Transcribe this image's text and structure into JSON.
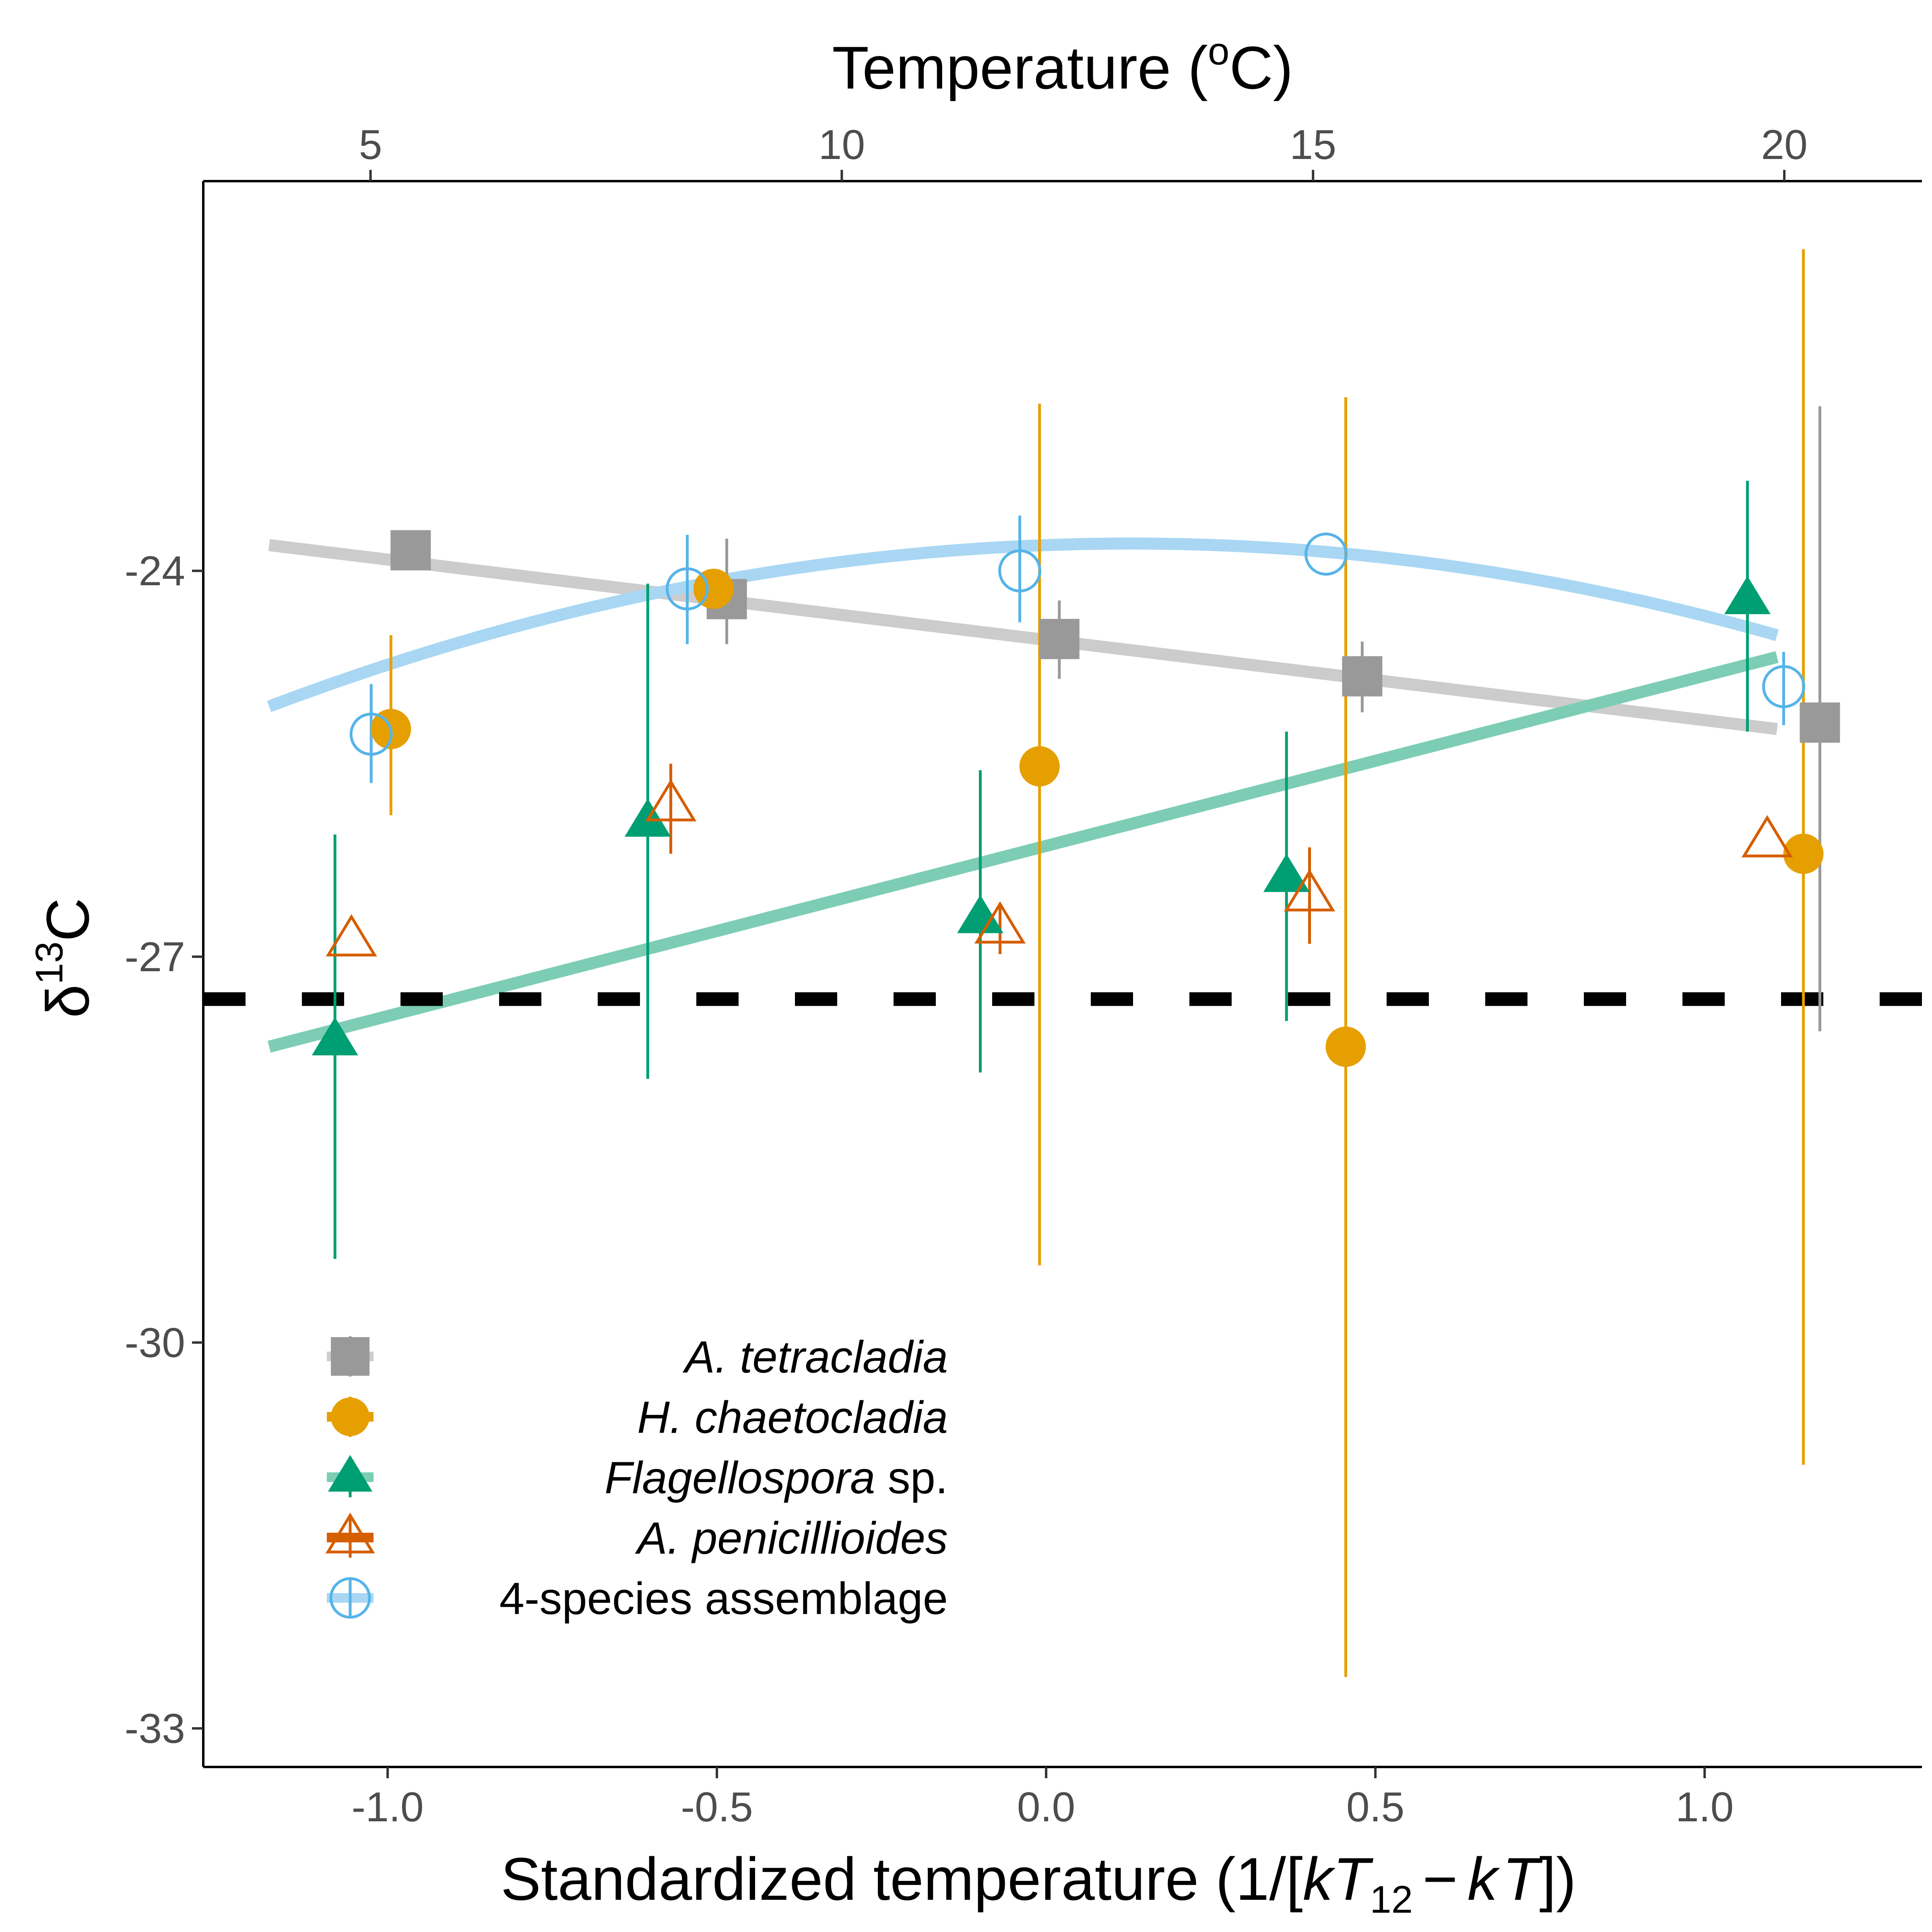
{
  "chart_data": {
    "type": "scatter",
    "xlabel": "Standardized temperature (1/[kT₁₂ − kT])",
    "xlabel_parts": {
      "prefix": "Standardized temperature (1/[",
      "k1": "k",
      "T1": "T",
      "sub": "12",
      "minus": "−",
      "k2": "k",
      "T2": "T",
      "suffix": "])"
    },
    "ylabel": "δ¹³C",
    "ylabel_parts": {
      "delta": "δ",
      "sup": "13",
      "base": "C"
    },
    "top_xlabel": "Temperature (°C)",
    "top_xlabel_parts": {
      "prefix": "Temperature (",
      "deg": "o",
      "suffix": "C)"
    },
    "xlim": [
      -1.28,
      1.33
    ],
    "ylim": [
      -33.3,
      -20.97
    ],
    "x_ticks": [
      {
        "value": -1.0,
        "label": "-1.0"
      },
      {
        "value": -0.5,
        "label": "-0.5"
      },
      {
        "value": 0.0,
        "label": "0.0"
      },
      {
        "value": 0.5,
        "label": "0.5"
      },
      {
        "value": 1.0,
        "label": "1.0"
      }
    ],
    "y_ticks": [
      {
        "value": -24,
        "label": "-24"
      },
      {
        "value": -27,
        "label": "-27"
      },
      {
        "value": -30,
        "label": "-30"
      },
      {
        "value": -33,
        "label": "-33"
      }
    ],
    "top_ticks": [
      {
        "celsius": 5,
        "label": "5"
      },
      {
        "celsius": 10,
        "label": "10"
      },
      {
        "celsius": 15,
        "label": "15"
      },
      {
        "celsius": 20,
        "label": "20"
      }
    ],
    "top_axis_mapping": {
      "c0": 5,
      "x0": -1.026,
      "c1": 20,
      "x1": 1.121
    },
    "reference_line": {
      "y": -27.33,
      "style": "dashed",
      "color": "#000000"
    },
    "grid": false,
    "legend": {
      "position": "bottom-left"
    },
    "series": [
      {
        "name": "A. tetracladia",
        "name_italic": "A. tetracladia",
        "name_rest": "",
        "color": "#999999",
        "marker": "square",
        "filled": true,
        "points": [
          {
            "x": -0.965,
            "y": -23.84,
            "lo": null,
            "hi": null
          },
          {
            "x": -0.485,
            "y": -24.22,
            "lo": -24.57,
            "hi": -23.75
          },
          {
            "x": 0.02,
            "y": -24.53,
            "lo": -24.84,
            "hi": -24.23
          },
          {
            "x": 0.48,
            "y": -24.82,
            "lo": -25.1,
            "hi": -24.55
          },
          {
            "x": 1.175,
            "y": -25.18,
            "lo": -27.58,
            "hi": -22.72
          }
        ],
        "fit": {
          "x0": -1.18,
          "y0": -23.8,
          "x1": 1.11,
          "y1": -25.23,
          "curve": "linear",
          "color": "#cccccc"
        }
      },
      {
        "name": "H. chaetocladia",
        "name_italic": "H. chaetocladia",
        "name_rest": "",
        "color": "#E69F00",
        "marker": "circle",
        "filled": true,
        "points": [
          {
            "x": -0.995,
            "y": -25.23,
            "lo": -25.9,
            "hi": -24.5
          },
          {
            "x": -0.505,
            "y": -24.14,
            "lo": null,
            "hi": null
          },
          {
            "x": -0.01,
            "y": -25.52,
            "lo": -29.4,
            "hi": -22.7
          },
          {
            "x": 0.455,
            "y": -27.7,
            "lo": -32.6,
            "hi": -22.65
          },
          {
            "x": 1.15,
            "y": -26.2,
            "lo": -30.95,
            "hi": -21.5
          }
        ]
      },
      {
        "name": "Flagellospora sp.",
        "name_italic": "Flagellospora",
        "name_rest": " sp.",
        "color": "#009E73",
        "marker": "triangle",
        "filled": true,
        "points": [
          {
            "x": -1.08,
            "y": -27.65,
            "lo": -29.35,
            "hi": -26.05
          },
          {
            "x": -0.605,
            "y": -25.95,
            "lo": -27.95,
            "hi": -24.1
          },
          {
            "x": -0.1,
            "y": -26.7,
            "lo": -27.9,
            "hi": -25.55
          },
          {
            "x": 0.365,
            "y": -26.38,
            "lo": -27.5,
            "hi": -25.25
          },
          {
            "x": 1.065,
            "y": -24.22,
            "lo": -25.25,
            "hi": -23.3
          }
        ],
        "fit": {
          "x0": -1.18,
          "y0": -27.7,
          "x1": 1.11,
          "y1": -24.67,
          "curve": "linear",
          "color": "#7dcdb5"
        }
      },
      {
        "name": "A. penicillioides",
        "name_italic": "A. penicillioides",
        "name_rest": "",
        "color": "#D55E00",
        "marker": "triangle",
        "filled": false,
        "points": [
          {
            "x": -1.055,
            "y": -26.87,
            "lo": null,
            "hi": null
          },
          {
            "x": -0.57,
            "y": -25.82,
            "lo": -26.2,
            "hi": -25.5
          },
          {
            "x": -0.07,
            "y": -26.77,
            "lo": -26.98,
            "hi": -26.6
          },
          {
            "x": 0.4,
            "y": -26.52,
            "lo": -26.9,
            "hi": -26.15
          },
          {
            "x": 1.095,
            "y": -26.1,
            "lo": null,
            "hi": null
          }
        ]
      },
      {
        "name": "4-species assemblage",
        "name_italic": "",
        "name_rest": "4-species assemblage",
        "color": "#56B4E9",
        "marker": "circle",
        "filled": false,
        "points": [
          {
            "x": -1.025,
            "y": -25.27,
            "lo": -25.65,
            "hi": -24.88
          },
          {
            "x": -0.545,
            "y": -24.14,
            "lo": -24.57,
            "hi": -23.72
          },
          {
            "x": -0.04,
            "y": -24.0,
            "lo": -24.4,
            "hi": -23.57
          },
          {
            "x": 0.425,
            "y": -23.87,
            "lo": null,
            "hi": null
          },
          {
            "x": 1.12,
            "y": -24.9,
            "lo": -25.2,
            "hi": -24.63
          }
        ],
        "fit": {
          "curve": "quadratic",
          "a": -0.74,
          "b": 0.19,
          "c": -23.8,
          "x0": -1.18,
          "x1": 1.11,
          "color": "#a9d7f3"
        }
      }
    ]
  }
}
